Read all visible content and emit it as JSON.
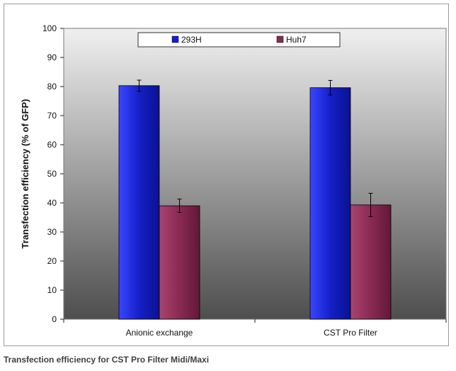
{
  "caption": "Transfection efficiency for CST Pro Filter Midi/Maxi",
  "colors": {
    "series_293H": "#1420c8",
    "series_Huh7": "#8a2a52",
    "plot_bg_top": "#f0f0f0",
    "plot_bg_bottom": "#4e4e4e"
  },
  "chart_data": {
    "type": "bar",
    "title": "",
    "xlabel": "",
    "ylabel": "Transfection efficiency (% of GFP)",
    "ylim": [
      0,
      100
    ],
    "yticks": [
      0,
      10,
      20,
      30,
      40,
      50,
      60,
      70,
      80,
      90,
      100
    ],
    "categories": [
      "Anionic exchange",
      "CST Pro Filter"
    ],
    "series": [
      {
        "name": "293H",
        "values": [
          80.3,
          79.6
        ],
        "errors": [
          1.9,
          2.5
        ],
        "color": "#1420c8"
      },
      {
        "name": "Huh7",
        "values": [
          39.0,
          39.3
        ],
        "errors": [
          2.3,
          4.0
        ],
        "color": "#8a2a52"
      }
    ],
    "legend": "top",
    "grid": false
  }
}
